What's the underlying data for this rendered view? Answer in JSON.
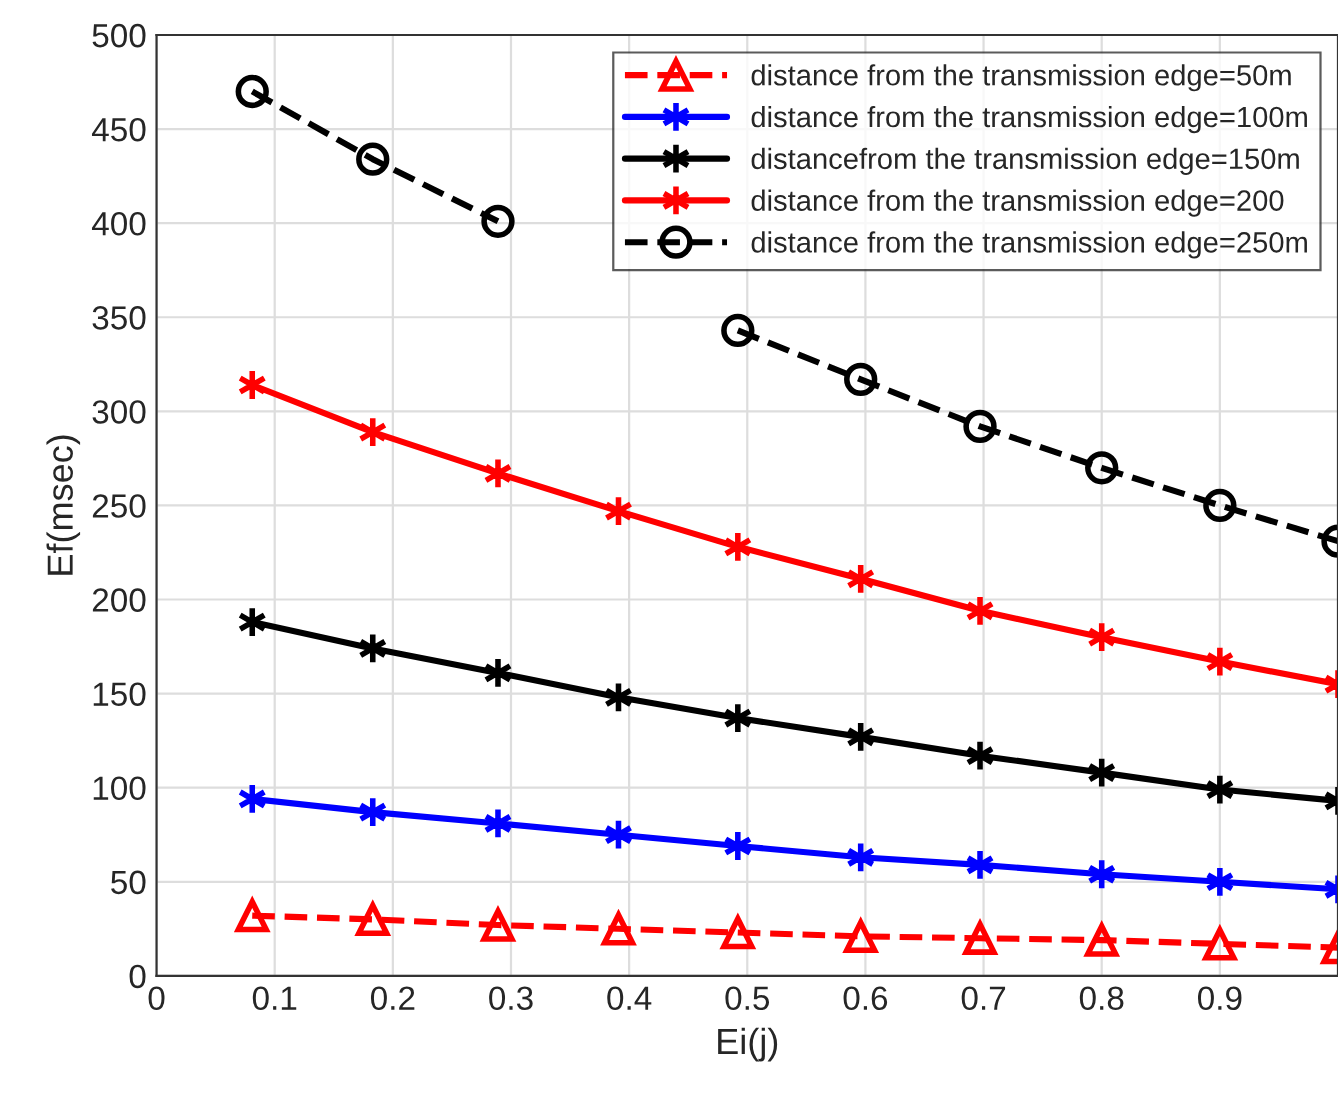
{
  "chart_data": {
    "type": "line",
    "xlabel": "Ei(j)",
    "ylabel": "Ef(msec)",
    "x": [
      0.081,
      0.183,
      0.289,
      0.391,
      0.492,
      0.596,
      0.697,
      0.8,
      0.9,
      1.0
    ],
    "series": [
      {
        "name": "distance from the transmission edge=50m",
        "color": "#ff0000",
        "marker": "triangle",
        "line_style": "dashed",
        "values": [
          32,
          30,
          27,
          25,
          23,
          21,
          20,
          19,
          17,
          15
        ]
      },
      {
        "name": "distance from the transmission edge=100m",
        "color": "#0000ff",
        "marker": "cross",
        "line_style": "solid",
        "values": [
          94,
          87,
          81,
          75,
          69,
          63,
          59,
          54,
          50,
          46
        ]
      },
      {
        "name": "distancefrom the transmission edge=150m",
        "color": "#000000",
        "marker": "cross",
        "line_style": "solid",
        "values": [
          188,
          174,
          161,
          148,
          137,
          127,
          117,
          108,
          99,
          93
        ]
      },
      {
        "name": "distance from the transmission edge=200",
        "color": "#ff0000",
        "marker": "cross",
        "line_style": "solid",
        "values": [
          314,
          289,
          267,
          247,
          228,
          211,
          194,
          180,
          167,
          155
        ]
      },
      {
        "name": "distance from the transmission edge=250m",
        "color": "#000000",
        "marker": "circle",
        "line_style": "dashed",
        "values": [
          470,
          434,
          401,
          null,
          343,
          317,
          292,
          270,
          250,
          231
        ]
      }
    ],
    "xlim": [
      0,
      1
    ],
    "xticks": [
      0,
      0.1,
      0.2,
      0.3,
      0.4,
      0.5,
      0.6,
      0.7,
      0.8,
      0.9
    ],
    "ylim": [
      0,
      500
    ],
    "yticks": [
      0,
      50,
      100,
      150,
      200,
      250,
      300,
      350,
      400,
      450,
      500
    ],
    "grid": true,
    "legend": "top right"
  }
}
